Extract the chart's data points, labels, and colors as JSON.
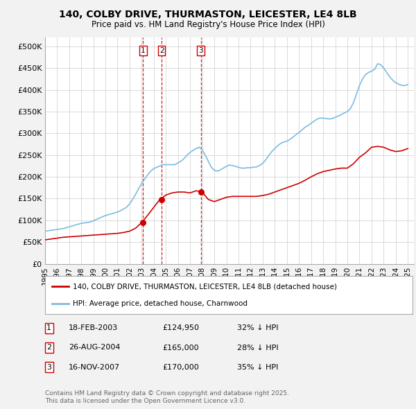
{
  "title_line1": "140, COLBY DRIVE, THURMASTON, LEICESTER, LE4 8LB",
  "title_line2": "Price paid vs. HM Land Registry's House Price Index (HPI)",
  "background_color": "#f2f2f2",
  "plot_bg_color": "#ffffff",
  "hpi_color": "#7bbce0",
  "price_color": "#cc0000",
  "vline_color": "#cc0000",
  "yticks": [
    0,
    50000,
    100000,
    150000,
    200000,
    250000,
    300000,
    350000,
    400000,
    450000,
    500000
  ],
  "ytick_labels": [
    "£0",
    "£50K",
    "£100K",
    "£150K",
    "£200K",
    "£250K",
    "£300K",
    "£350K",
    "£400K",
    "£450K",
    "£500K"
  ],
  "transactions": [
    {
      "num": 1,
      "date_label": "18-FEB-2003",
      "price": 124950,
      "hpi_diff": "32% ↓ HPI",
      "x_year": 2003.12
    },
    {
      "num": 2,
      "date_label": "26-AUG-2004",
      "price": 165000,
      "hpi_diff": "28% ↓ HPI",
      "x_year": 2004.65
    },
    {
      "num": 3,
      "date_label": "16-NOV-2007",
      "price": 170000,
      "hpi_diff": "35% ↓ HPI",
      "x_year": 2007.88
    }
  ],
  "legend_label_red": "140, COLBY DRIVE, THURMASTON, LEICESTER, LE4 8LB (detached house)",
  "legend_label_blue": "HPI: Average price, detached house, Charnwood",
  "footer_line1": "Contains HM Land Registry data © Crown copyright and database right 2025.",
  "footer_line2": "This data is licensed under the Open Government Licence v3.0.",
  "hpi_data_x": [
    1995.0,
    1995.25,
    1995.5,
    1995.75,
    1996.0,
    1996.25,
    1996.5,
    1996.75,
    1997.0,
    1997.25,
    1997.5,
    1997.75,
    1998.0,
    1998.25,
    1998.5,
    1998.75,
    1999.0,
    1999.25,
    1999.5,
    1999.75,
    2000.0,
    2000.25,
    2000.5,
    2000.75,
    2001.0,
    2001.25,
    2001.5,
    2001.75,
    2002.0,
    2002.25,
    2002.5,
    2002.75,
    2003.0,
    2003.25,
    2003.5,
    2003.75,
    2004.0,
    2004.25,
    2004.5,
    2004.75,
    2005.0,
    2005.25,
    2005.5,
    2005.75,
    2006.0,
    2006.25,
    2006.5,
    2006.75,
    2007.0,
    2007.25,
    2007.5,
    2007.75,
    2008.0,
    2008.25,
    2008.5,
    2008.75,
    2009.0,
    2009.25,
    2009.5,
    2009.75,
    2010.0,
    2010.25,
    2010.5,
    2010.75,
    2011.0,
    2011.25,
    2011.5,
    2011.75,
    2012.0,
    2012.25,
    2012.5,
    2012.75,
    2013.0,
    2013.25,
    2013.5,
    2013.75,
    2014.0,
    2014.25,
    2014.5,
    2014.75,
    2015.0,
    2015.25,
    2015.5,
    2015.75,
    2016.0,
    2016.25,
    2016.5,
    2016.75,
    2017.0,
    2017.25,
    2017.5,
    2017.75,
    2018.0,
    2018.25,
    2018.5,
    2018.75,
    2019.0,
    2019.25,
    2019.5,
    2019.75,
    2020.0,
    2020.25,
    2020.5,
    2020.75,
    2021.0,
    2021.25,
    2021.5,
    2021.75,
    2022.0,
    2022.25,
    2022.5,
    2022.75,
    2023.0,
    2023.25,
    2023.5,
    2023.75,
    2024.0,
    2024.25,
    2024.5,
    2024.75,
    2025.0
  ],
  "hpi_data_y": [
    75000,
    76000,
    77000,
    78000,
    79000,
    80000,
    81000,
    83000,
    85000,
    87000,
    89000,
    91000,
    93000,
    94000,
    95000,
    96000,
    99000,
    102000,
    105000,
    108000,
    111000,
    113000,
    115000,
    117000,
    119000,
    122000,
    126000,
    130000,
    138000,
    148000,
    160000,
    173000,
    185000,
    195000,
    205000,
    213000,
    219000,
    222000,
    225000,
    228000,
    228000,
    228000,
    228000,
    228000,
    232000,
    236000,
    242000,
    250000,
    256000,
    261000,
    265000,
    268000,
    262000,
    250000,
    236000,
    222000,
    215000,
    213000,
    216000,
    220000,
    224000,
    227000,
    226000,
    224000,
    222000,
    220000,
    220000,
    221000,
    221000,
    222000,
    223000,
    226000,
    231000,
    239000,
    249000,
    258000,
    265000,
    272000,
    277000,
    280000,
    282000,
    286000,
    291000,
    297000,
    302000,
    308000,
    314000,
    318000,
    323000,
    328000,
    333000,
    335000,
    335000,
    334000,
    333000,
    334000,
    337000,
    340000,
    343000,
    347000,
    350000,
    357000,
    370000,
    390000,
    410000,
    425000,
    435000,
    440000,
    443000,
    447000,
    460000,
    458000,
    450000,
    440000,
    430000,
    422000,
    416000,
    413000,
    410000,
    410000,
    412000
  ],
  "price_data_x": [
    1995.0,
    1995.5,
    1996.0,
    1996.5,
    1997.0,
    1997.5,
    1998.0,
    1998.5,
    1999.0,
    1999.5,
    2000.0,
    2000.5,
    2001.0,
    2001.5,
    2002.0,
    2002.5,
    2003.0,
    2003.5,
    2004.0,
    2004.5,
    2005.0,
    2005.5,
    2006.0,
    2006.5,
    2007.0,
    2007.5,
    2008.0,
    2008.5,
    2009.0,
    2009.5,
    2010.0,
    2010.5,
    2011.0,
    2011.5,
    2012.0,
    2012.5,
    2013.0,
    2013.5,
    2014.0,
    2014.5,
    2015.0,
    2015.5,
    2016.0,
    2016.5,
    2017.0,
    2017.5,
    2018.0,
    2018.5,
    2019.0,
    2019.5,
    2020.0,
    2020.5,
    2021.0,
    2021.5,
    2022.0,
    2022.5,
    2023.0,
    2023.5,
    2024.0,
    2024.5,
    2025.0
  ],
  "price_data_y": [
    55000,
    57000,
    59000,
    61000,
    62000,
    63000,
    64000,
    65000,
    66000,
    67000,
    68000,
    69000,
    70000,
    72000,
    75000,
    82000,
    95000,
    112000,
    130000,
    148000,
    158000,
    163000,
    165000,
    165000,
    163000,
    168000,
    165000,
    148000,
    143000,
    148000,
    153000,
    155000,
    155000,
    155000,
    155000,
    155000,
    157000,
    160000,
    165000,
    170000,
    175000,
    180000,
    185000,
    192000,
    200000,
    207000,
    212000,
    215000,
    218000,
    220000,
    220000,
    230000,
    245000,
    255000,
    268000,
    270000,
    268000,
    262000,
    258000,
    260000,
    265000
  ],
  "xlim": [
    1995,
    2025.5
  ],
  "ylim": [
    0,
    520000
  ]
}
